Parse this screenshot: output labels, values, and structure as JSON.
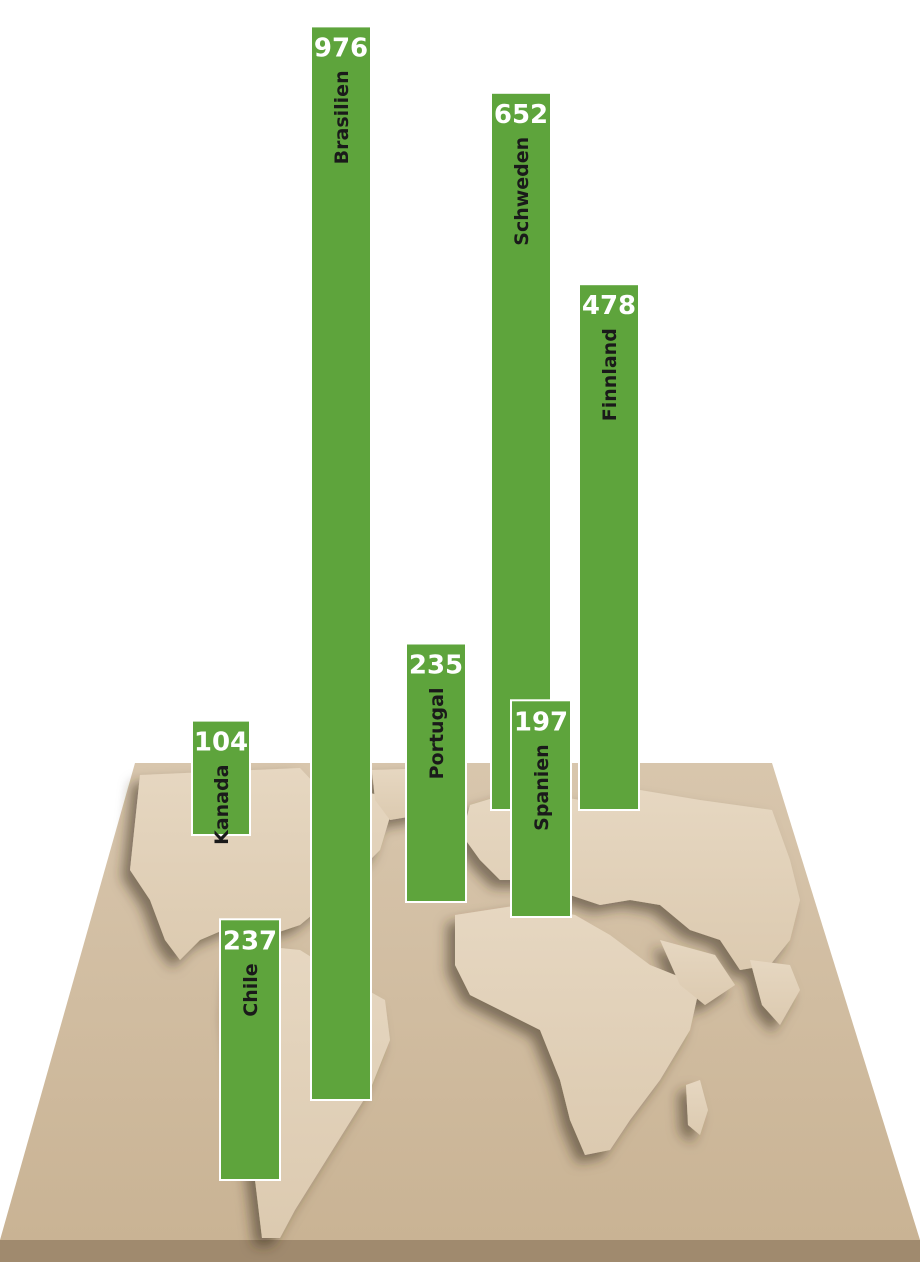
{
  "chart_data": {
    "type": "bar",
    "title": "",
    "xlabel": "",
    "ylabel": "",
    "categories": [
      "Kanada",
      "Chile",
      "Brasilien",
      "Portugal",
      "Spanien",
      "Schweden",
      "Finnland"
    ],
    "values": [
      104,
      237,
      976,
      235,
      197,
      652,
      478
    ],
    "ylim": [
      0,
      1000
    ],
    "grid": false,
    "legend": "none",
    "bar_color": "#5ea43c",
    "bar_border_color": "#ffffff",
    "label_color": "#1a1a1a",
    "value_color": "#ffffff",
    "background": "world-map-paper-texture"
  }
}
